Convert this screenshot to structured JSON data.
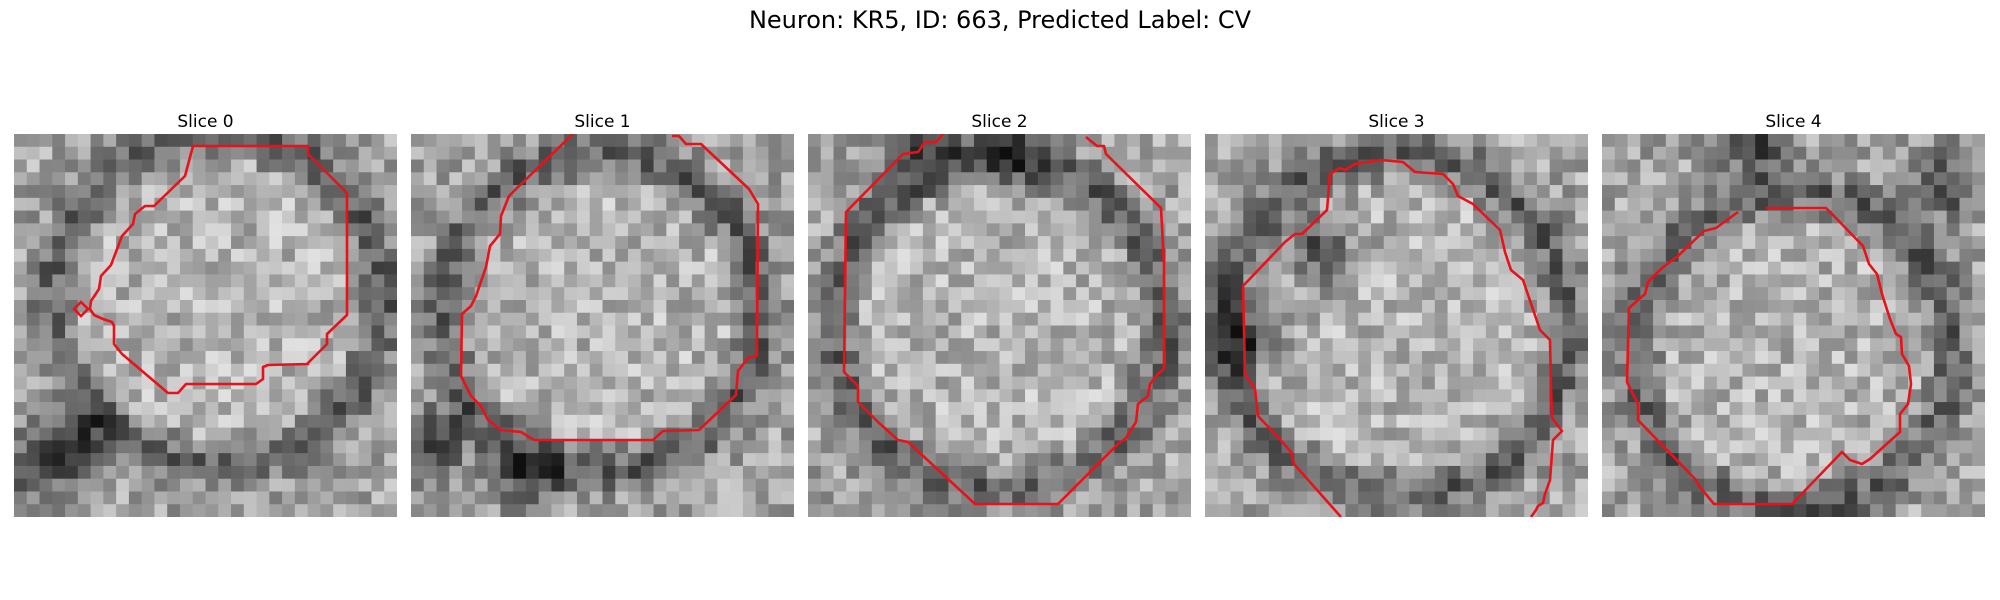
{
  "figure": {
    "title": "Neuron: KR5, ID: 663, Predicted Label: CV",
    "contour_color": "#e8121a",
    "grid_size": 30,
    "panels": [
      {
        "title": "Slice 0",
        "seed": 11,
        "center": [
          16,
          13
        ],
        "rim_radius": 13,
        "dark_spots": [
          [
            2,
            26
          ],
          [
            5,
            24
          ]
        ]
      },
      {
        "title": "Slice 1",
        "seed": 23,
        "center": [
          15,
          14
        ],
        "rim_radius": 12.5,
        "dark_spots": [
          [
            2,
            24
          ],
          [
            9,
            27
          ]
        ]
      },
      {
        "title": "Slice 2",
        "seed": 37,
        "center": [
          15,
          15
        ],
        "rim_radius": 13,
        "dark_spots": [
          [
            16,
            1
          ],
          [
            9,
            1
          ]
        ]
      },
      {
        "title": "Slice 3",
        "seed": 51,
        "center": [
          15,
          15
        ],
        "rim_radius": 13.5,
        "dark_spots": [
          [
            9,
            9
          ],
          [
            3,
            16
          ]
        ]
      },
      {
        "title": "Slice 4",
        "seed": 67,
        "center": [
          15,
          17
        ],
        "rim_radius": 12.5,
        "dark_spots": [
          [
            12,
            1
          ],
          [
            27,
            4
          ]
        ]
      }
    ]
  }
}
